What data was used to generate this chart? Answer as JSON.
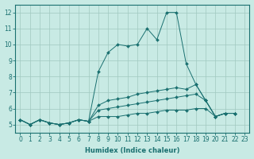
{
  "xlabel": "Humidex (Indice chaleur)",
  "ylabel": "",
  "bg_color": "#c8eae4",
  "line_color": "#1a7070",
  "xlim": [
    -0.5,
    23.5
  ],
  "ylim": [
    4.5,
    12.5
  ],
  "yticks": [
    5,
    6,
    7,
    8,
    9,
    10,
    11,
    12
  ],
  "xticks": [
    0,
    1,
    2,
    3,
    4,
    5,
    6,
    7,
    8,
    9,
    10,
    11,
    12,
    13,
    14,
    15,
    16,
    17,
    18,
    19,
    20,
    21,
    22,
    23
  ],
  "series": [
    {
      "x": [
        0,
        1,
        2,
        3,
        4,
        5,
        6,
        7,
        8,
        9,
        10,
        11,
        12,
        13,
        14,
        15,
        16,
        17,
        18,
        19,
        20,
        21,
        22
      ],
      "y": [
        5.3,
        5.0,
        5.3,
        5.1,
        5.0,
        5.1,
        5.3,
        5.2,
        8.3,
        9.5,
        10.0,
        9.9,
        10.0,
        11.0,
        10.3,
        12.0,
        12.0,
        8.8,
        7.5,
        6.5,
        5.5,
        5.7,
        5.7
      ]
    },
    {
      "x": [
        0,
        1,
        2,
        3,
        4,
        5,
        6,
        7,
        8,
        9,
        10,
        11,
        12,
        13,
        14,
        15,
        16,
        17,
        18,
        19,
        20,
        21,
        22
      ],
      "y": [
        5.3,
        5.0,
        5.3,
        5.1,
        5.0,
        5.1,
        5.3,
        5.2,
        6.2,
        6.5,
        6.6,
        6.7,
        6.9,
        7.0,
        7.1,
        7.2,
        7.3,
        7.2,
        7.5,
        6.5,
        5.5,
        5.7,
        5.7
      ]
    },
    {
      "x": [
        0,
        1,
        2,
        3,
        4,
        5,
        6,
        7,
        8,
        9,
        10,
        11,
        12,
        13,
        14,
        15,
        16,
        17,
        18,
        19,
        20,
        21,
        22
      ],
      "y": [
        5.3,
        5.0,
        5.3,
        5.1,
        5.0,
        5.1,
        5.3,
        5.2,
        5.9,
        6.0,
        6.1,
        6.2,
        6.3,
        6.4,
        6.5,
        6.6,
        6.7,
        6.8,
        6.9,
        6.5,
        5.5,
        5.7,
        5.7
      ]
    },
    {
      "x": [
        0,
        1,
        2,
        3,
        4,
        5,
        6,
        7,
        8,
        9,
        10,
        11,
        12,
        13,
        14,
        15,
        16,
        17,
        18,
        19,
        20,
        21,
        22
      ],
      "y": [
        5.3,
        5.0,
        5.3,
        5.1,
        5.0,
        5.1,
        5.3,
        5.2,
        5.5,
        5.5,
        5.5,
        5.6,
        5.7,
        5.7,
        5.8,
        5.9,
        5.9,
        5.9,
        6.0,
        6.0,
        5.5,
        5.7,
        5.7
      ]
    }
  ]
}
